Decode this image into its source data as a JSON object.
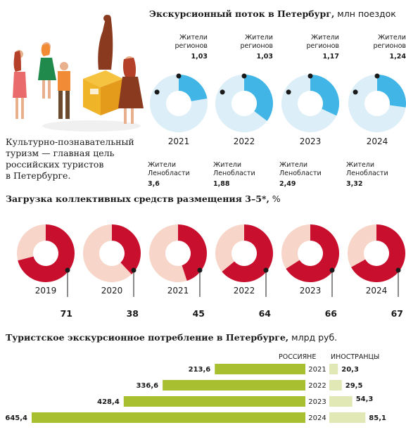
{
  "flow": {
    "title_bold": "Экскурсионный поток в Петербург,",
    "title_unit": " млн поездок",
    "regions_label": [
      "Жители",
      "регионов"
    ],
    "oblast_label": [
      "Жители",
      "Ленобласти"
    ]
  },
  "note": [
    "Культурно-познавательный",
    "туризм — главная цель",
    "российских туристов",
    "в Петербурге."
  ],
  "occupancy": {
    "title_bold": "Загрузка коллективных средств размещения 3–5*,",
    "title_unit": " %"
  },
  "spend": {
    "title_bold": "Туристское экскурсионное потребление в Петербурге,",
    "title_unit": " млрд руб.",
    "col_russians": "РОССИЯНЕ",
    "col_foreigners": "ИНОСТРАНЦЫ"
  },
  "colors": {
    "blue": "#41b6e6",
    "blue_light": "#dceef8",
    "red": "#c8102e",
    "red_light": "#f7d5c9",
    "green": "#a8bf2f",
    "green_light": "#e2e8b5"
  },
  "illustration": "tourists-at-monument-illustration",
  "chart_data": [
    {
      "type": "pie",
      "title": "Экскурсионный поток в Петербург, млн поездок",
      "categories": [
        "2021",
        "2022",
        "2023",
        "2024"
      ],
      "series": [
        {
          "name": "Жители регионов",
          "values": [
            1.03,
            1.03,
            1.17,
            1.24
          ]
        },
        {
          "name": "Жители Ленобласти",
          "values": [
            3.6,
            1.88,
            2.49,
            3.32
          ]
        }
      ]
    },
    {
      "type": "pie",
      "title": "Загрузка коллективных средств размещения 3–5*, %",
      "categories": [
        "2019",
        "2020",
        "2021",
        "2022",
        "2023",
        "2024"
      ],
      "values": [
        71,
        38,
        45,
        64,
        66,
        67
      ]
    },
    {
      "type": "bar",
      "title": "Туристское экскурсионное потребление в Петербурге, млрд руб.",
      "categories": [
        "2021",
        "2022",
        "2023",
        "2024"
      ],
      "series": [
        {
          "name": "РОССИЯНЕ",
          "values": [
            213.6,
            336.6,
            428.4,
            645.4
          ]
        },
        {
          "name": "ИНОСТРАНЦЫ",
          "values": [
            20.3,
            29.5,
            54.3,
            85.1
          ]
        }
      ]
    }
  ]
}
